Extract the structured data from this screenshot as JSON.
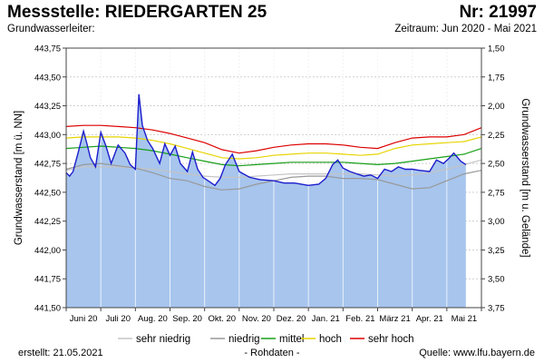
{
  "header": {
    "title": "Messstelle: RIEDERGARTEN 25",
    "number": "Nr: 21997",
    "subtitle": "Grundwasserleiter:",
    "period": "Zeitraum: Jun 2020 - Mai 2021"
  },
  "footer": {
    "created": "erstellt:  21.05.2021",
    "raw": "- Rohdaten -",
    "source": "Quelle:  www.lfu.bayern.de"
  },
  "chart_data": {
    "type": "area",
    "ylabel": "Grundwasserstand [m ü. NN]",
    "ylabel_right": "Grundwasserstand [m u. Gelände]",
    "ylim": [
      441.5,
      443.75
    ],
    "ylim_right": [
      1.5,
      3.75
    ],
    "yticks": [
      "443,75",
      "443,50",
      "443,25",
      "443,00",
      "442,75",
      "442,50",
      "442,25",
      "442,00",
      "441,75",
      "441,50"
    ],
    "yticks_right": [
      "1,50",
      "1,75",
      "2,00",
      "2,25",
      "2,50",
      "2,75",
      "3,00",
      "3,25",
      "3,50",
      "3,75"
    ],
    "xlim": [
      0,
      12
    ],
    "months": [
      "Juni 20",
      "Juli 20",
      "Aug. 20",
      "Sep. 20",
      "Okt. 20",
      "Nov. 20",
      "Dez. 20",
      "Jan. 21",
      "Feb. 21",
      "März 21",
      "Apr. 21",
      "Mai 21"
    ],
    "measured": {
      "name": "Grundwasserstand",
      "color": "#1c1ccc",
      "fill": "#a7c5ed",
      "x": [
        0,
        0.1,
        0.2,
        0.35,
        0.5,
        0.6,
        0.7,
        0.85,
        1.0,
        1.15,
        1.3,
        1.5,
        1.7,
        1.85,
        2.0,
        2.1,
        2.2,
        2.35,
        2.5,
        2.7,
        2.85,
        3.0,
        3.15,
        3.3,
        3.5,
        3.65,
        3.8,
        3.95,
        4.1,
        4.3,
        4.45,
        4.6,
        4.8,
        5.0,
        5.3,
        5.6,
        6.0,
        6.3,
        6.6,
        7.0,
        7.3,
        7.5,
        7.7,
        7.85,
        8.0,
        8.2,
        8.4,
        8.6,
        8.8,
        9.0,
        9.2,
        9.4,
        9.6,
        9.8,
        10.0,
        10.2,
        10.5,
        10.7,
        10.9,
        11.05,
        11.2,
        11.4,
        11.55
      ],
      "values": [
        442.67,
        442.64,
        442.68,
        442.85,
        443.03,
        442.92,
        442.8,
        442.72,
        443.02,
        442.9,
        442.75,
        442.91,
        442.84,
        442.74,
        442.7,
        443.35,
        443.08,
        442.95,
        442.88,
        442.75,
        442.92,
        442.82,
        442.9,
        442.75,
        442.68,
        442.85,
        442.7,
        442.63,
        442.6,
        442.56,
        442.62,
        442.74,
        442.83,
        442.68,
        442.63,
        442.61,
        442.6,
        442.58,
        442.58,
        442.56,
        442.57,
        442.62,
        442.74,
        442.78,
        442.71,
        442.68,
        442.66,
        442.64,
        442.65,
        442.62,
        442.7,
        442.68,
        442.72,
        442.7,
        442.7,
        442.69,
        442.68,
        442.78,
        442.75,
        442.79,
        442.84,
        442.77,
        442.74
      ]
    },
    "series": [
      {
        "name": "sehr niedrig",
        "color": "#c4c4c4",
        "x": [
          0,
          0.5,
          1,
          1.5,
          2,
          2.5,
          3,
          3.5,
          4,
          4.5,
          5,
          5.5,
          6,
          6.5,
          7,
          7.5,
          8,
          8.5,
          9,
          9.5,
          10,
          10.5,
          11,
          11.5,
          12
        ],
        "values": [
          442.69,
          442.72,
          442.72,
          442.72,
          442.71,
          442.7,
          442.68,
          442.66,
          442.64,
          442.63,
          442.63,
          442.64,
          442.65,
          442.66,
          442.66,
          442.66,
          442.66,
          442.66,
          442.65,
          442.64,
          442.65,
          442.67,
          442.7,
          442.74,
          442.78
        ]
      },
      {
        "name": "niedrig",
        "color": "#999999",
        "x": [
          0,
          0.5,
          1,
          1.5,
          2,
          2.5,
          3,
          3.5,
          4,
          4.5,
          5,
          5.5,
          6,
          6.5,
          7,
          7.5,
          8,
          8.5,
          9,
          9.5,
          10,
          10.5,
          11,
          11.5,
          12
        ],
        "values": [
          442.7,
          442.74,
          442.75,
          442.73,
          442.71,
          442.67,
          442.62,
          442.6,
          442.55,
          442.52,
          442.53,
          442.57,
          442.6,
          442.63,
          442.64,
          442.64,
          442.62,
          442.62,
          442.61,
          442.57,
          442.53,
          442.54,
          442.6,
          442.66,
          442.69
        ]
      },
      {
        "name": "mittel",
        "color": "#18a018",
        "x": [
          0,
          0.5,
          1,
          1.5,
          2,
          2.5,
          3,
          3.5,
          4,
          4.5,
          5,
          5.5,
          6,
          6.5,
          7,
          7.5,
          8,
          8.5,
          9,
          9.5,
          10,
          10.5,
          11,
          11.5,
          12
        ],
        "values": [
          442.88,
          442.89,
          442.9,
          442.89,
          442.88,
          442.86,
          442.83,
          442.8,
          442.77,
          442.74,
          442.73,
          442.74,
          442.75,
          442.76,
          442.76,
          442.76,
          442.76,
          442.75,
          442.74,
          442.75,
          442.77,
          442.79,
          442.81,
          442.83,
          442.88
        ]
      },
      {
        "name": "hoch",
        "color": "#e6d400",
        "x": [
          0,
          0.5,
          1,
          1.5,
          2,
          2.5,
          3,
          3.5,
          4,
          4.5,
          5,
          5.5,
          6,
          6.5,
          7,
          7.5,
          8,
          8.5,
          9,
          9.5,
          10,
          10.5,
          11,
          11.5,
          12
        ],
        "values": [
          442.97,
          442.98,
          442.98,
          442.98,
          442.97,
          442.95,
          442.92,
          442.88,
          442.84,
          442.8,
          442.79,
          442.8,
          442.82,
          442.83,
          442.84,
          442.84,
          442.83,
          442.82,
          442.83,
          442.88,
          442.91,
          442.92,
          442.93,
          442.94,
          442.98
        ]
      },
      {
        "name": "sehr hoch",
        "color": "#dd0000",
        "x": [
          0,
          0.5,
          1,
          1.5,
          2,
          2.5,
          3,
          3.5,
          4,
          4.5,
          5,
          5.5,
          6,
          6.5,
          7,
          7.5,
          8,
          8.5,
          9,
          9.5,
          10,
          10.5,
          11,
          11.5,
          12
        ],
        "values": [
          443.07,
          443.08,
          443.08,
          443.07,
          443.06,
          443.04,
          443.01,
          442.97,
          442.93,
          442.87,
          442.84,
          442.86,
          442.89,
          442.91,
          442.92,
          442.92,
          442.91,
          442.89,
          442.88,
          442.93,
          442.97,
          442.98,
          442.98,
          443.0,
          443.06
        ]
      }
    ],
    "legend_position": "bottom"
  }
}
